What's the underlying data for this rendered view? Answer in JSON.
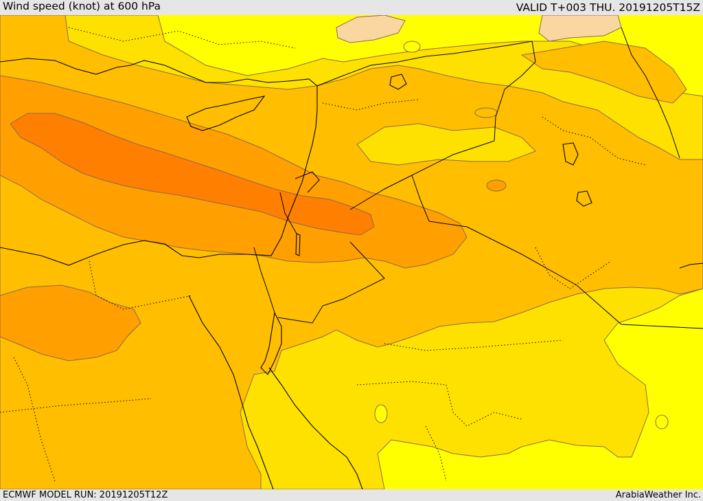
{
  "header": {
    "title": "Wind speed (knot) at 600 hPa",
    "valid": "VALID T+003 THU. 20191205T15Z"
  },
  "footer": {
    "model_run": "ECMWF MODEL RUN: 20191205T12Z",
    "credit": "ArabiaWeather Inc."
  },
  "palette": {
    "band_light": "#fad7a0",
    "band_yellow": "#ffff00",
    "band_gold": "#ffe100",
    "band_amber": "#ffbe00",
    "band_orange": "#ffa000",
    "band_dark_orange": "#ff7f00"
  }
}
